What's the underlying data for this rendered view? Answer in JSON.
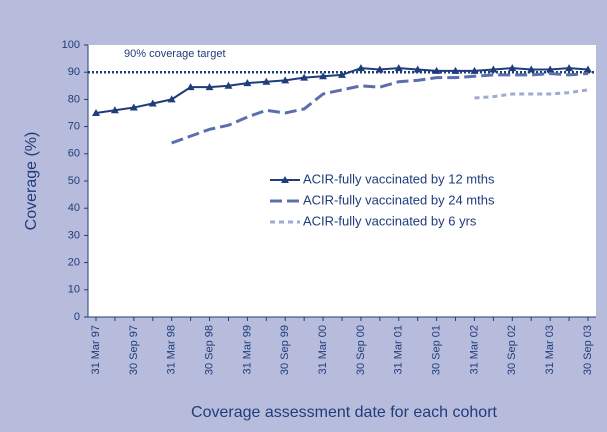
{
  "chart_data": {
    "type": "line",
    "xlabel": "Coverage assessment date for each cohort",
    "ylabel": "Coverage (%)",
    "annotation": "90% coverage target",
    "target": 90,
    "categories": [
      "31 Mar 97",
      null,
      "30 Sep 97",
      null,
      "31 Mar 98",
      null,
      "30 Sep 98",
      null,
      "31 Mar 99",
      null,
      "30 Sep 99",
      null,
      "31 Mar 00",
      null,
      "30 Sep 00",
      null,
      "31 Mar 01",
      null,
      "30 Sep 01",
      null,
      "31 Mar 02",
      null,
      "30 Sep 02",
      null,
      "31 Mar 03",
      null,
      "30 Sep 03"
    ],
    "series": [
      {
        "name": "ACIR-fully vaccinated by 12 mths",
        "color": "#1f3d7a",
        "dash": "solid",
        "marker": "triangle",
        "values": [
          75,
          76,
          77,
          78.5,
          80,
          84.5,
          84.5,
          85,
          86,
          86.5,
          87,
          88,
          88.5,
          89,
          91.5,
          91,
          91.5,
          91,
          90.5,
          90.5,
          90.5,
          91,
          91.5,
          91,
          91,
          91.5,
          91
        ]
      },
      {
        "name": "ACIR-fully vaccinated by 24 mths",
        "color": "#5b6fae",
        "dash": "long",
        "values": [
          null,
          null,
          null,
          null,
          64,
          66.5,
          69,
          70.5,
          73.5,
          76,
          75,
          76.5,
          82,
          83.5,
          85,
          84.5,
          86.5,
          87,
          88,
          88,
          88.5,
          89,
          89,
          89,
          89.5,
          89,
          89.5
        ]
      },
      {
        "name": "ACIR-fully vaccinated by 6 yrs",
        "color": "#9fa9d6",
        "dash": "short",
        "values": [
          null,
          null,
          null,
          null,
          null,
          null,
          null,
          null,
          null,
          null,
          null,
          null,
          null,
          null,
          null,
          null,
          null,
          null,
          null,
          null,
          80.5,
          81,
          82,
          82,
          82,
          82.5,
          83.5
        ]
      }
    ],
    "ylim": [
      0,
      100
    ],
    "yticks": [
      0,
      10,
      20,
      30,
      40,
      50,
      60,
      70,
      80,
      90,
      100
    ],
    "legend": "center-right",
    "grid": false
  }
}
